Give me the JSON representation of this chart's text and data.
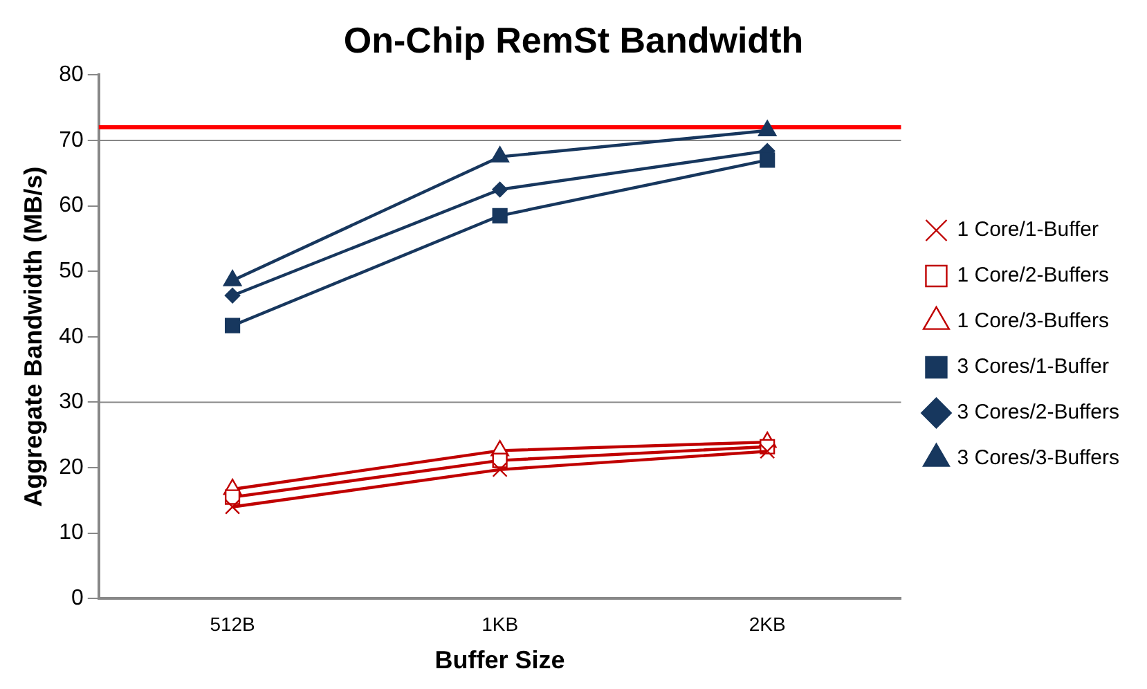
{
  "chart_data": {
    "type": "line",
    "title": "On-Chip RemSt Bandwidth",
    "xlabel": "Buffer Size",
    "ylabel": "Aggregate Bandwidth (MB/s)",
    "categories": [
      "512B",
      "1KB",
      "2KB"
    ],
    "series": [
      {
        "name": "1 Core/1-Buffer",
        "color": "#c00000",
        "marker": "cross",
        "values": [
          14.0,
          19.7,
          22.5
        ]
      },
      {
        "name": "1 Core/2-Buffers",
        "color": "#c00000",
        "marker": "square",
        "values": [
          15.5,
          21.1,
          23.2
        ]
      },
      {
        "name": "1 Core/3-Buffers",
        "color": "#c00000",
        "marker": "triangle",
        "values": [
          16.7,
          22.6,
          23.9
        ]
      },
      {
        "name": "3 Cores/1-Buffer",
        "color": "#17375e",
        "marker": "square",
        "values": [
          41.7,
          58.5,
          67.0
        ]
      },
      {
        "name": "3 Cores/2-Buffers",
        "color": "#17375e",
        "marker": "diamond",
        "values": [
          46.3,
          62.5,
          68.4
        ]
      },
      {
        "name": "3 Cores/3-Buffers",
        "color": "#17375e",
        "marker": "triangle",
        "values": [
          48.6,
          67.5,
          71.5
        ]
      }
    ],
    "ylim": [
      0,
      80
    ],
    "yticks": [
      0,
      10,
      20,
      30,
      40,
      50,
      60,
      70,
      80
    ],
    "ref_lines": [
      {
        "axis": "y",
        "value": 30,
        "color": "#868686"
      },
      {
        "axis": "y",
        "value": 70,
        "color": "#868686"
      },
      {
        "axis": "y",
        "value": 72,
        "color": "#ff0000"
      }
    ],
    "legend": "right",
    "grid": false,
    "line_style": "solid"
  }
}
